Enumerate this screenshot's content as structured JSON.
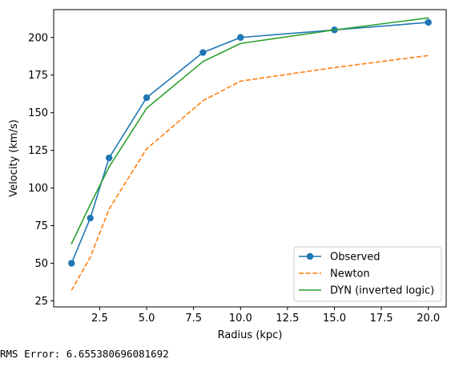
{
  "chart_data": {
    "type": "line",
    "xlabel": "Radius (kpc)",
    "ylabel": "Velocity (km/s)",
    "xlim": [
      0.05,
      20.95
    ],
    "ylim": [
      21,
      218.5
    ],
    "xticks": [
      2.5,
      5.0,
      7.5,
      10.0,
      12.5,
      15.0,
      17.5,
      20.0
    ],
    "xtick_labels": [
      "2.5",
      "5.0",
      "7.5",
      "10.0",
      "12.5",
      "15.0",
      "17.5",
      "20.0"
    ],
    "yticks": [
      25,
      50,
      75,
      100,
      125,
      150,
      175,
      200
    ],
    "ytick_labels": [
      "25",
      "50",
      "75",
      "100",
      "125",
      "150",
      "175",
      "200"
    ],
    "grid": false,
    "legend_position": "lower-right",
    "series": [
      {
        "name": "Observed",
        "color": "#1f77b4",
        "style": "solid",
        "marker": "circle",
        "x": [
          1,
          2,
          3,
          5,
          8,
          10,
          15,
          20
        ],
        "y": [
          50,
          80,
          120,
          160,
          190,
          200,
          205,
          210
        ]
      },
      {
        "name": "Newton",
        "color": "#ff7f0e",
        "style": "dashed",
        "marker": "none",
        "x": [
          1,
          2,
          3,
          5,
          8,
          10,
          15,
          20
        ],
        "y": [
          32,
          54,
          86,
          126,
          158,
          171,
          180,
          188
        ]
      },
      {
        "name": "DYN (inverted logic)",
        "color": "#2ca02c",
        "style": "solid",
        "marker": "none",
        "x": [
          1,
          2,
          3,
          5,
          8,
          10,
          15,
          20
        ],
        "y": [
          63,
          89,
          114,
          153,
          184,
          196,
          205,
          213
        ]
      }
    ]
  },
  "footer": {
    "rms_text": "RMS Error: 6.655380696081692"
  }
}
